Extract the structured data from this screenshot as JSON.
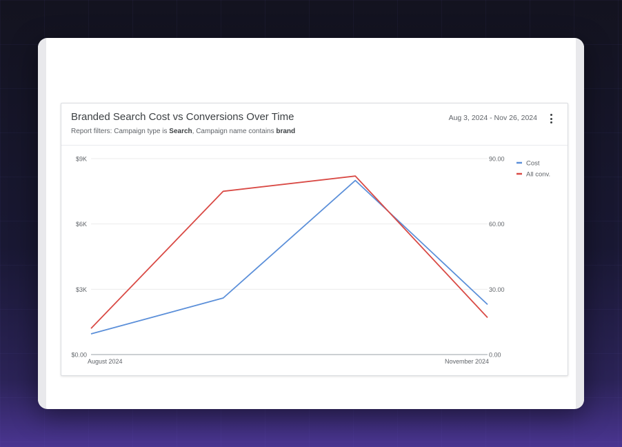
{
  "card": {
    "title": "Branded Search Cost vs Conversions Over Time",
    "filter_prefix": "Report filters: Campaign type is ",
    "filter_campaign_type": "Search",
    "filter_middle": ", Campaign name contains ",
    "filter_campaign_name": "brand",
    "date_range": "Aug 3, 2024 - Nov 26, 2024"
  },
  "colors": {
    "cost": "#5b8fd9",
    "conv": "#d94a45",
    "grid": "#ebebeb",
    "axis": "#9aa0a6"
  },
  "chart_data": {
    "type": "line",
    "title": "Branded Search Cost vs Conversions Over Time",
    "x_labels": [
      "August 2024",
      "",
      "",
      "November 2024"
    ],
    "left_axis": {
      "ticks": [
        "$0.00",
        "$3K",
        "$6K",
        "$9K"
      ],
      "range": [
        0,
        9000
      ]
    },
    "right_axis": {
      "ticks": [
        "0.00",
        "30.00",
        "60.00",
        "90.00"
      ],
      "range": [
        0,
        90
      ]
    },
    "series": [
      {
        "name": "Cost",
        "axis": "left",
        "values": [
          950,
          2600,
          8000,
          2300
        ]
      },
      {
        "name": "All conv.",
        "axis": "right",
        "values": [
          12,
          75,
          82,
          17
        ]
      }
    ],
    "legend": [
      "Cost",
      "All conv."
    ],
    "legend_position": "top-right"
  }
}
